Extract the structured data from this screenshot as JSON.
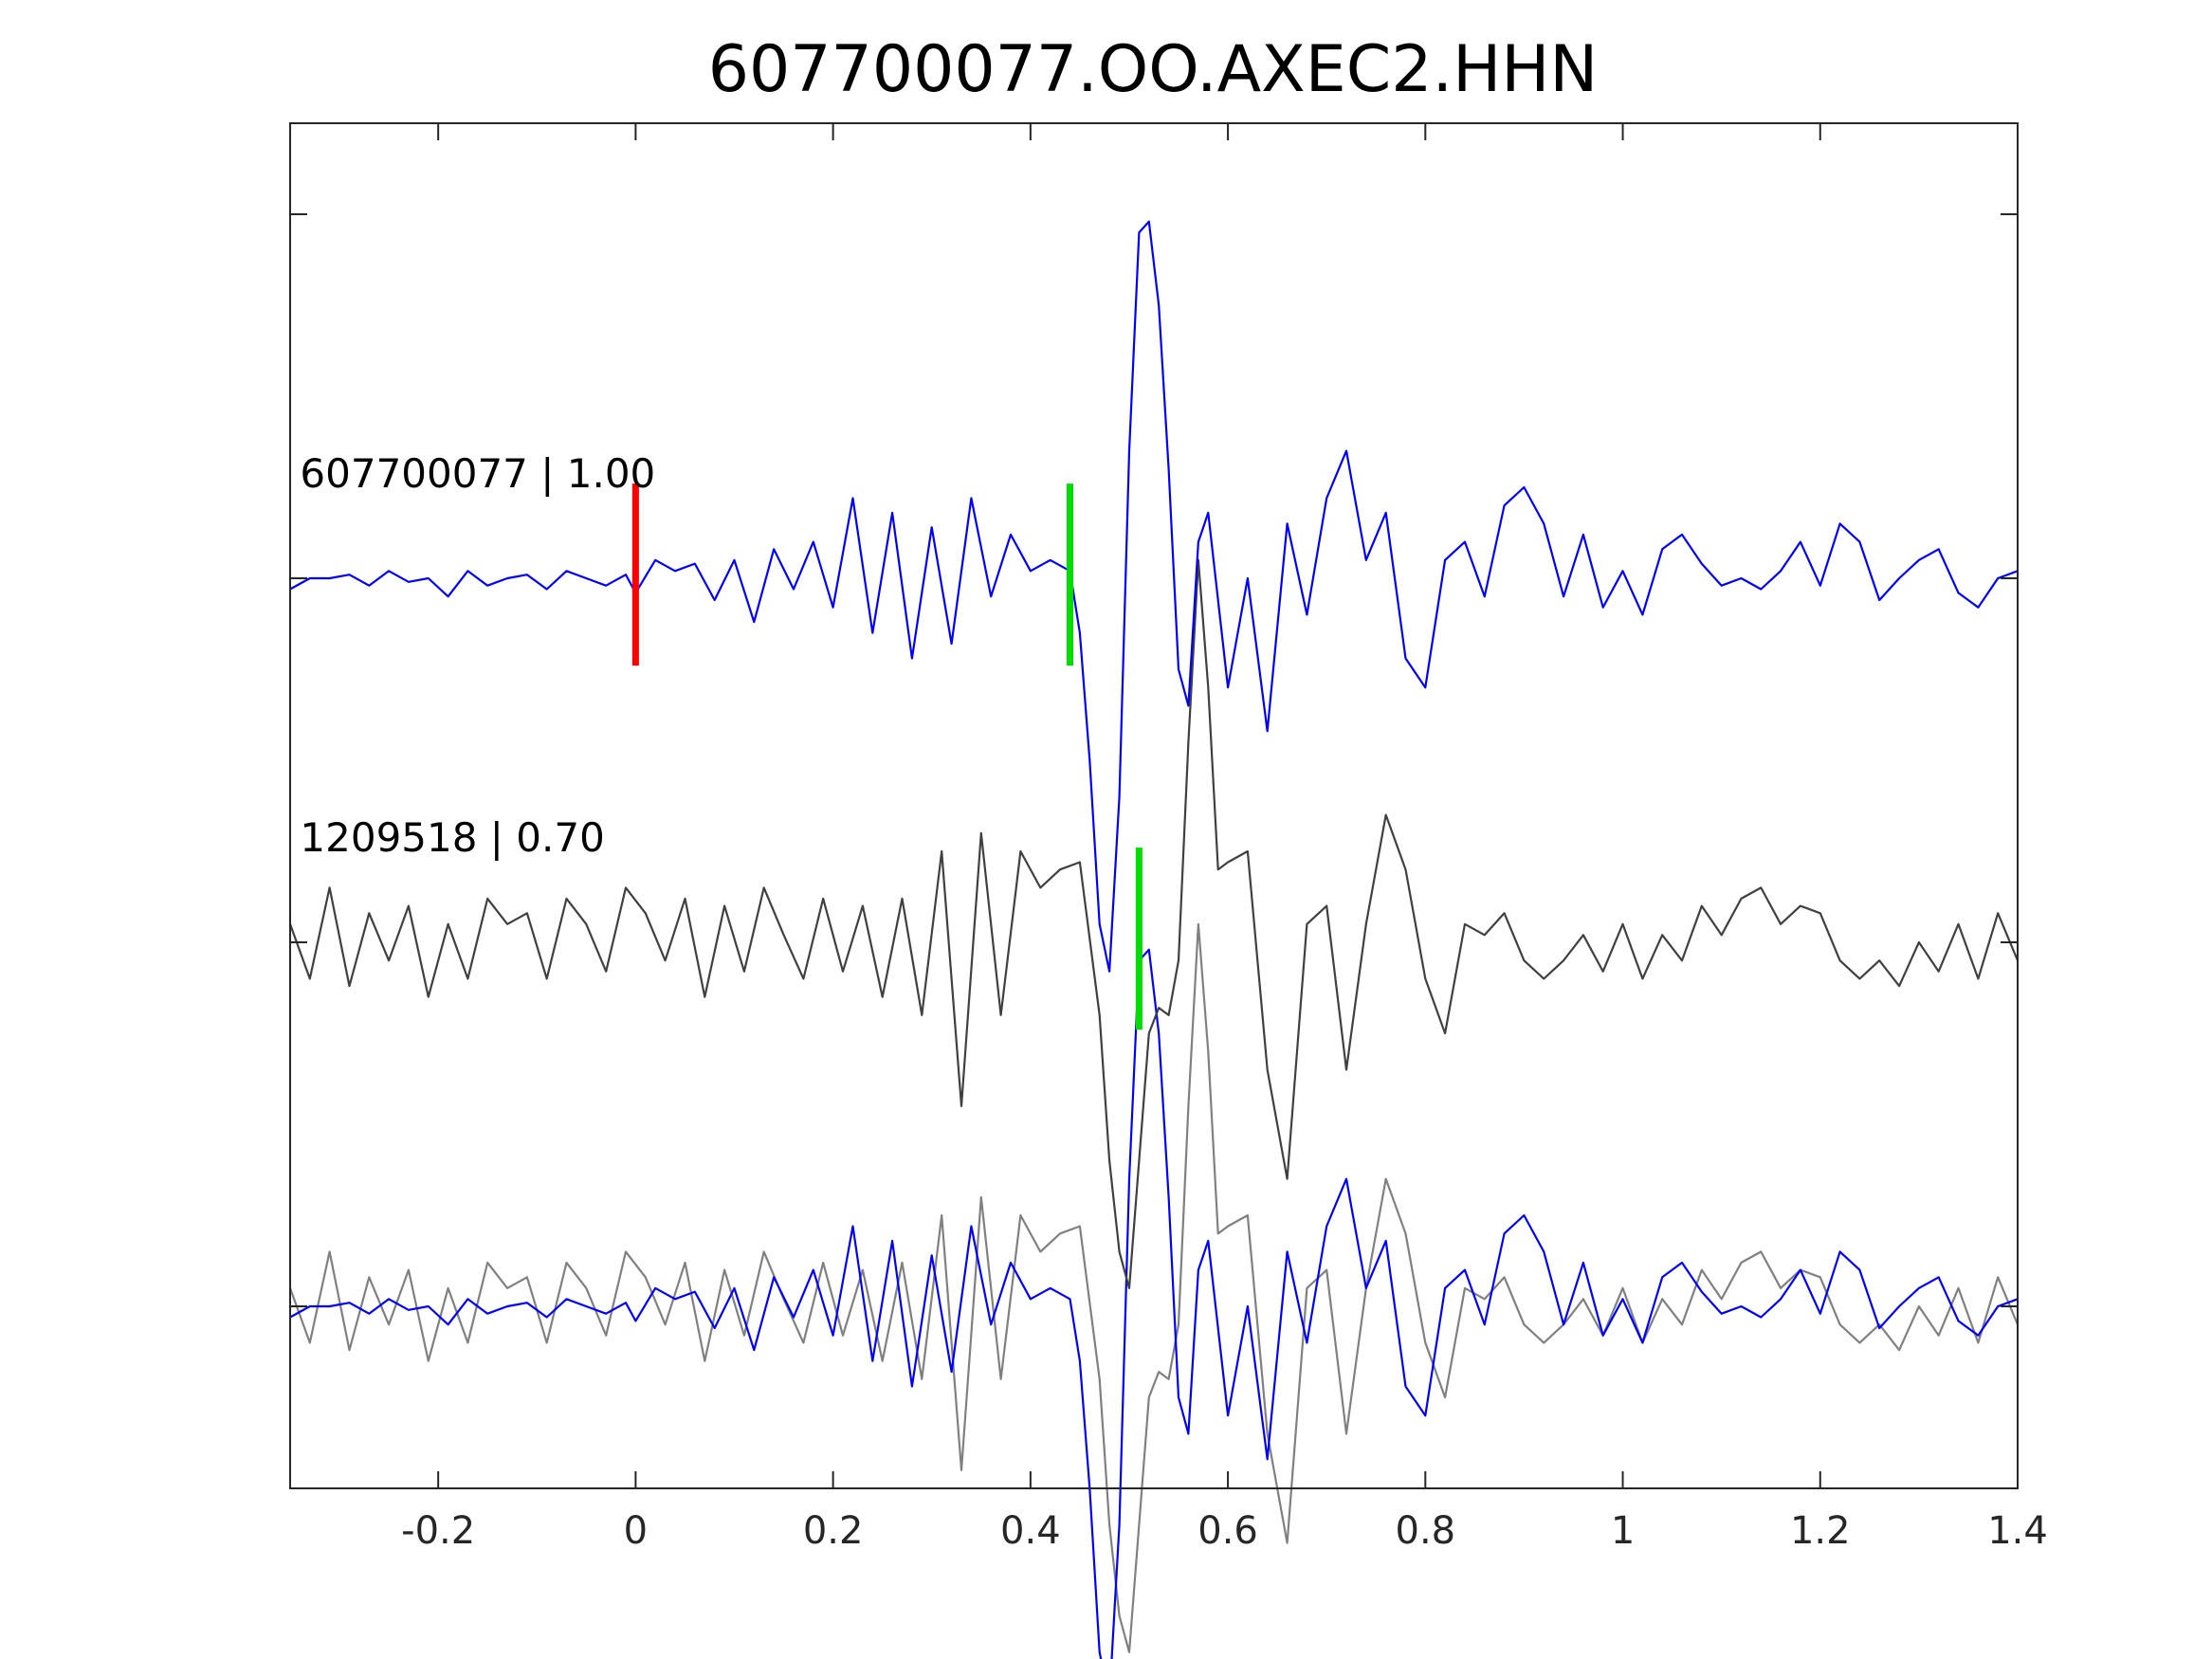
{
  "chart_data": {
    "type": "line",
    "title": "607700077.OO.AXEC2.HHN",
    "xlabel": "",
    "ylabel": "",
    "xlim": [
      -0.35,
      1.4
    ],
    "ylim": [
      -0.5,
      3.25
    ],
    "x_ticks": [
      -0.2,
      0,
      0.2,
      0.4,
      0.6,
      0.8,
      1,
      1.2,
      1.4
    ],
    "x_tick_labels": [
      "-0.2",
      "0",
      "0.2",
      "0.4",
      "0.6",
      "0.8",
      "1",
      "1.2",
      "1.4"
    ],
    "y_ticks": [
      0,
      1,
      2,
      3
    ],
    "grid": false,
    "legend": "none",
    "colors": {
      "template": "#0000ff",
      "detection": "#404040",
      "detection_overlay": "#808080",
      "pick_p": "#ff0000",
      "pick_s": "#00dd00",
      "axes": "#262626"
    },
    "trace_labels": [
      {
        "text": "607700077 | 1.00",
        "x": -0.34,
        "y": 2.25
      },
      {
        "text": "1209518 | 0.70",
        "x": -0.34,
        "y": 1.25
      }
    ],
    "picks": [
      {
        "phase": "P",
        "x": 0.0,
        "y_range": [
          1.76,
          2.26
        ],
        "color": "#ff0000"
      },
      {
        "phase": "S",
        "x": 0.44,
        "y_range": [
          1.76,
          2.26
        ],
        "color": "#00dd00"
      },
      {
        "phase": "S",
        "x": 0.51,
        "y_range": [
          0.76,
          1.26
        ],
        "color": "#00dd00"
      }
    ],
    "series": [
      {
        "role": "template",
        "baseline": 2.0,
        "color": "#0000ff",
        "x": [
          -0.35,
          -0.33,
          -0.31,
          -0.29,
          -0.27,
          -0.25,
          -0.23,
          -0.21,
          -0.19,
          -0.17,
          -0.15,
          -0.13,
          -0.11,
          -0.09,
          -0.07,
          -0.05,
          -0.03,
          -0.01,
          0.0,
          0.02,
          0.04,
          0.06,
          0.08,
          0.1,
          0.12,
          0.14,
          0.16,
          0.18,
          0.2,
          0.22,
          0.24,
          0.26,
          0.28,
          0.3,
          0.32,
          0.34,
          0.36,
          0.38,
          0.4,
          0.42,
          0.44,
          0.45,
          0.46,
          0.47,
          0.48,
          0.49,
          0.5,
          0.51,
          0.52,
          0.53,
          0.54,
          0.55,
          0.56,
          0.57,
          0.58,
          0.6,
          0.62,
          0.64,
          0.66,
          0.68,
          0.7,
          0.72,
          0.74,
          0.76,
          0.78,
          0.8,
          0.82,
          0.84,
          0.86,
          0.88,
          0.9,
          0.92,
          0.94,
          0.96,
          0.98,
          1.0,
          1.02,
          1.04,
          1.06,
          1.08,
          1.1,
          1.12,
          1.14,
          1.16,
          1.18,
          1.2,
          1.22,
          1.24,
          1.26,
          1.28,
          1.3,
          1.32,
          1.34,
          1.36,
          1.38,
          1.4
        ],
        "values": [
          -0.03,
          0.0,
          0.0,
          0.01,
          -0.02,
          0.02,
          -0.01,
          0.0,
          -0.05,
          0.02,
          -0.02,
          0.0,
          0.01,
          -0.03,
          0.02,
          0.0,
          -0.02,
          0.01,
          -0.04,
          0.05,
          0.02,
          0.04,
          -0.06,
          0.05,
          -0.12,
          0.08,
          -0.03,
          0.1,
          -0.08,
          0.22,
          -0.15,
          0.18,
          -0.22,
          0.14,
          -0.18,
          0.22,
          -0.05,
          0.12,
          0.02,
          0.05,
          0.02,
          -0.15,
          -0.5,
          -0.95,
          -1.08,
          -0.6,
          0.35,
          0.95,
          0.98,
          0.75,
          0.3,
          -0.25,
          -0.35,
          0.1,
          0.18,
          -0.3,
          0.0,
          -0.42,
          0.15,
          -0.1,
          0.22,
          0.35,
          0.05,
          0.18,
          -0.22,
          -0.3,
          0.05,
          0.1,
          -0.05,
          0.2,
          0.25,
          0.15,
          -0.05,
          0.12,
          -0.08,
          0.02,
          -0.1,
          0.08,
          0.12,
          0.04,
          -0.02,
          0.0,
          -0.03,
          0.02,
          0.1,
          -0.02,
          0.15,
          0.1,
          -0.06,
          0.0,
          0.05,
          0.08,
          -0.04,
          -0.08,
          0.0,
          0.02
        ],
        "label": "607700077 | 1.00"
      },
      {
        "role": "detection",
        "baseline": 1.0,
        "color": "#404040",
        "x": [
          -0.35,
          -0.33,
          -0.31,
          -0.29,
          -0.27,
          -0.25,
          -0.23,
          -0.21,
          -0.19,
          -0.17,
          -0.15,
          -0.13,
          -0.11,
          -0.09,
          -0.07,
          -0.05,
          -0.03,
          -0.01,
          0.01,
          0.03,
          0.05,
          0.07,
          0.09,
          0.11,
          0.13,
          0.15,
          0.17,
          0.19,
          0.21,
          0.23,
          0.25,
          0.27,
          0.29,
          0.31,
          0.33,
          0.35,
          0.37,
          0.39,
          0.41,
          0.43,
          0.45,
          0.47,
          0.48,
          0.49,
          0.5,
          0.51,
          0.52,
          0.53,
          0.54,
          0.55,
          0.56,
          0.57,
          0.58,
          0.59,
          0.6,
          0.62,
          0.64,
          0.66,
          0.68,
          0.7,
          0.72,
          0.74,
          0.76,
          0.78,
          0.8,
          0.82,
          0.84,
          0.86,
          0.88,
          0.9,
          0.92,
          0.94,
          0.96,
          0.98,
          1.0,
          1.02,
          1.04,
          1.06,
          1.08,
          1.1,
          1.12,
          1.14,
          1.16,
          1.18,
          1.2,
          1.22,
          1.24,
          1.26,
          1.28,
          1.3,
          1.32,
          1.34,
          1.36,
          1.38,
          1.4
        ],
        "values": [
          0.05,
          -0.1,
          0.15,
          -0.12,
          0.08,
          -0.05,
          0.1,
          -0.15,
          0.05,
          -0.1,
          0.12,
          0.05,
          0.08,
          -0.1,
          0.12,
          0.05,
          -0.08,
          0.15,
          0.08,
          -0.05,
          0.12,
          -0.15,
          0.1,
          -0.08,
          0.15,
          0.02,
          -0.1,
          0.12,
          -0.08,
          0.1,
          -0.15,
          0.12,
          -0.2,
          0.25,
          -0.45,
          0.3,
          -0.2,
          0.25,
          0.15,
          0.2,
          0.22,
          -0.2,
          -0.6,
          -0.85,
          -0.95,
          -0.6,
          -0.25,
          -0.18,
          -0.2,
          -0.05,
          0.55,
          1.05,
          0.7,
          0.2,
          0.22,
          0.25,
          -0.35,
          -0.65,
          0.05,
          0.1,
          -0.35,
          0.05,
          0.35,
          0.2,
          -0.1,
          -0.25,
          0.05,
          0.02,
          0.08,
          -0.05,
          -0.1,
          -0.05,
          0.02,
          -0.08,
          0.05,
          -0.1,
          0.02,
          -0.05,
          0.1,
          0.02,
          0.12,
          0.15,
          0.05,
          0.1,
          0.08,
          -0.05,
          -0.1,
          -0.05,
          -0.12,
          0.0,
          -0.08,
          0.05,
          -0.1,
          0.08,
          -0.05
        ],
        "label": "1209518 | 0.70"
      },
      {
        "role": "overlay_detection",
        "baseline": 0.0,
        "color": "#808080",
        "source": "detection"
      },
      {
        "role": "overlay_template",
        "baseline": 0.0,
        "color": "#0000ff",
        "source": "template"
      }
    ]
  }
}
